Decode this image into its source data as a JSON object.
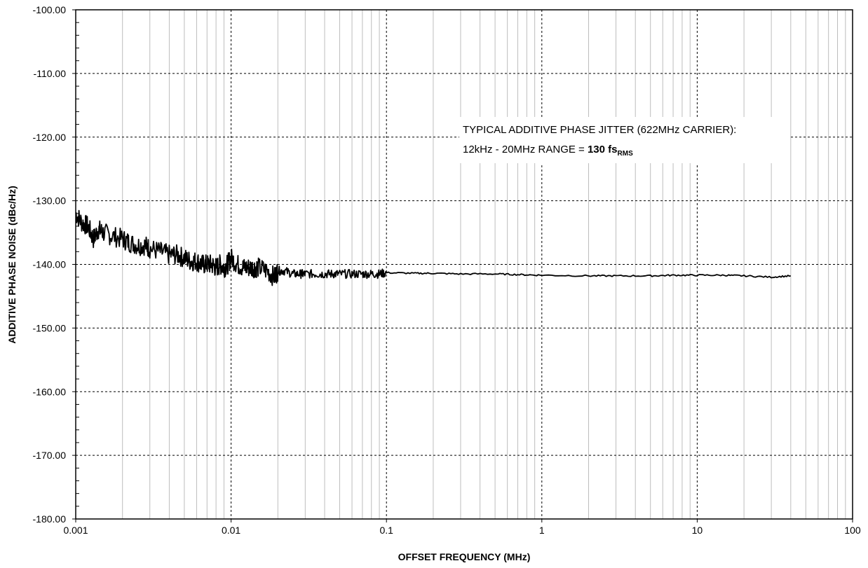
{
  "chart_data": {
    "type": "line",
    "title": "",
    "xlabel": "OFFSET FREQUENCY (MHz)",
    "ylabel": "ADDITIVE PHASE NOISE (dBc/Hz)",
    "x_scale": "log",
    "xlim": [
      0.001,
      100
    ],
    "ylim": [
      -180,
      -100
    ],
    "x_ticks": [
      "0.001",
      "0.01",
      "0.1",
      "1",
      "10",
      "100"
    ],
    "y_ticks": [
      "-100.00",
      "-110.00",
      "-120.00",
      "-130.00",
      "-140.00",
      "-150.00",
      "-160.00",
      "-170.00",
      "-180.00"
    ],
    "grid": true,
    "legend": "none",
    "annotation": {
      "line1": "TYPICAL ADDITIVE PHASE JITTER (622MHz  CARRIER):",
      "line2_prefix": "12kHz  - 20MHz  RANGE = ",
      "line2_value": "130 fs",
      "line2_sub": "RMS"
    },
    "series": [
      {
        "x": [
          0.001,
          0.0011,
          0.0012,
          0.0013,
          0.0014,
          0.0015,
          0.0017,
          0.002,
          0.0022,
          0.0025,
          0.0028,
          0.003,
          0.0035,
          0.004,
          0.0045,
          0.005,
          0.0055,
          0.006,
          0.0065,
          0.007,
          0.0075,
          0.008,
          0.0085,
          0.009,
          0.0095,
          0.01,
          0.011,
          0.012,
          0.013,
          0.014,
          0.015,
          0.017,
          0.019,
          0.02,
          0.022,
          0.025,
          0.028,
          0.03,
          0.035,
          0.04,
          0.045,
          0.05,
          0.06,
          0.07,
          0.08,
          0.09,
          0.1,
          0.15,
          0.2,
          0.3,
          0.5,
          0.7,
          1,
          2,
          3,
          5,
          7,
          10,
          15,
          20,
          30,
          40
        ],
        "y": [
          -132.0,
          -133.5,
          -134.0,
          -136.0,
          -134.5,
          -135.0,
          -135.5,
          -136.0,
          -136.5,
          -137.0,
          -137.0,
          -137.5,
          -138.0,
          -138.5,
          -138.5,
          -139.0,
          -139.5,
          -139.5,
          -140.0,
          -140.0,
          -140.0,
          -140.5,
          -140.0,
          -140.5,
          -140.0,
          -139.0,
          -140.0,
          -140.5,
          -140.5,
          -140.5,
          -140.5,
          -141.0,
          -142.0,
          -141.0,
          -141.0,
          -141.5,
          -141.5,
          -141.5,
          -141.5,
          -141.5,
          -141.5,
          -141.5,
          -141.5,
          -141.5,
          -141.5,
          -141.5,
          -141.3,
          -141.4,
          -141.4,
          -141.5,
          -141.5,
          -141.6,
          -141.7,
          -141.8,
          -141.8,
          -141.8,
          -141.7,
          -141.7,
          -141.7,
          -141.8,
          -142.0,
          -141.8
        ]
      }
    ]
  }
}
